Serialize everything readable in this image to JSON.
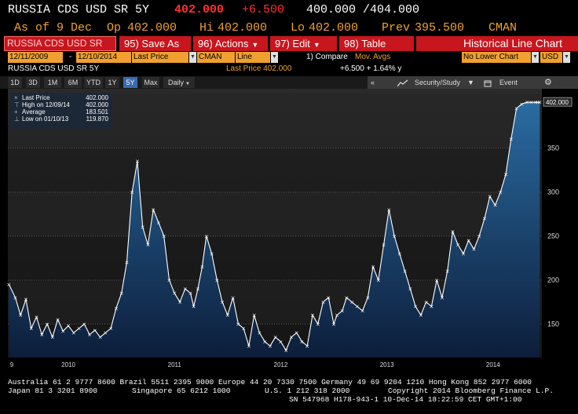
{
  "header": {
    "security": "RUSSIA CDS USD SR 5Y",
    "last": "402.000",
    "change": "+6.500",
    "bid_ask": "400.000 /404.000"
  },
  "quote": {
    "as_of": "As of 9 Dec",
    "open_label": "Op",
    "open": "402.000",
    "high_label": "Hi",
    "high": "402.000",
    "low_label": "Lo",
    "low": "402.000",
    "prev_label": "Prev",
    "prev": "395.500",
    "source": "CMAN"
  },
  "menu": {
    "security_box": "RUSSIA CDS USD SR",
    "save_num": "95)",
    "save": "Save As",
    "actions_num": "96)",
    "actions": "Actions",
    "edit_num": "97)",
    "edit": "Edit",
    "table_num": "98)",
    "table": "Table",
    "title": "Historical Line Chart"
  },
  "params": {
    "start_date": "12/11/2009",
    "sep": "-",
    "end_date": "12/10/2014",
    "field": "Last Price",
    "source": "CMAN",
    "chart_type": "Line",
    "compare": "1) Compare",
    "mov_avgs": "Mov. Avgs",
    "lower_chart": "No Lower Chart",
    "currency": "USD"
  },
  "info": {
    "name": "RUSSIA CDS USD SR 5Y",
    "last_price": "Last Price 402.000",
    "change": "+6.500 + 1.64% y"
  },
  "ranges": [
    "1D",
    "3D",
    "1M",
    "6M",
    "YTD",
    "1Y",
    "5Y",
    "Max"
  ],
  "active_range": "5Y",
  "period": "Daily",
  "toolbar": {
    "security_study": "Security/Study",
    "event": "Event"
  },
  "legend": {
    "last_price_label": "Last Price",
    "last_price": "402.000",
    "high_label": "High on 12/09/14",
    "high": "402.000",
    "average_label": "Average",
    "average": "183.501",
    "low_label": "Low on 01/10/13",
    "low": "119.870"
  },
  "last_value_label": "402.000",
  "chart_data": {
    "type": "area",
    "title": "",
    "xlabel": "",
    "ylabel": "",
    "ylim": [
      112,
      412
    ],
    "y_ticks": [
      150,
      200,
      250,
      300,
      350
    ],
    "x_ticks": [
      "9",
      "2010",
      "2011",
      "2012",
      "2013",
      "2014"
    ],
    "x_tick_years": [
      2009.95,
      2010.5,
      2011.5,
      2012.5,
      2013.5,
      2014.5
    ],
    "x": [
      2009.94,
      2010.0,
      2010.05,
      2010.1,
      2010.15,
      2010.2,
      2010.25,
      2010.3,
      2010.35,
      2010.4,
      2010.45,
      2010.5,
      2010.55,
      2010.6,
      2010.65,
      2010.7,
      2010.75,
      2010.8,
      2010.85,
      2010.9,
      2010.95,
      2011.0,
      2011.05,
      2011.1,
      2011.15,
      2011.2,
      2011.25,
      2011.3,
      2011.35,
      2011.4,
      2011.45,
      2011.5,
      2011.55,
      2011.6,
      2011.65,
      2011.68,
      2011.72,
      2011.76,
      2011.8,
      2011.85,
      2011.9,
      2011.95,
      2012.0,
      2012.05,
      2012.1,
      2012.15,
      2012.2,
      2012.25,
      2012.3,
      2012.35,
      2012.4,
      2012.45,
      2012.5,
      2012.55,
      2012.6,
      2012.65,
      2012.7,
      2012.75,
      2012.8,
      2012.85,
      2012.9,
      2012.95,
      2013.0,
      2013.03,
      2013.08,
      2013.12,
      2013.17,
      2013.22,
      2013.27,
      2013.32,
      2013.37,
      2013.42,
      2013.47,
      2013.52,
      2013.57,
      2013.62,
      2013.67,
      2013.72,
      2013.77,
      2013.82,
      2013.87,
      2013.92,
      2013.97,
      2014.02,
      2014.07,
      2014.12,
      2014.17,
      2014.22,
      2014.27,
      2014.32,
      2014.37,
      2014.42,
      2014.47,
      2014.52,
      2014.57,
      2014.62,
      2014.67,
      2014.72,
      2014.77,
      2014.82,
      2014.86,
      2014.9,
      2014.92,
      2014.94
    ],
    "values": [
      195,
      180,
      160,
      178,
      145,
      158,
      138,
      150,
      135,
      155,
      142,
      148,
      140,
      145,
      150,
      138,
      143,
      135,
      140,
      145,
      168,
      185,
      220,
      300,
      335,
      260,
      240,
      280,
      265,
      250,
      200,
      185,
      175,
      190,
      185,
      170,
      190,
      215,
      250,
      230,
      200,
      175,
      160,
      180,
      150,
      145,
      125,
      160,
      140,
      130,
      125,
      135,
      130,
      120,
      135,
      140,
      130,
      125,
      160,
      150,
      175,
      180,
      150,
      160,
      165,
      180,
      175,
      170,
      165,
      180,
      215,
      200,
      240,
      280,
      250,
      230,
      210,
      190,
      170,
      160,
      175,
      170,
      200,
      180,
      210,
      255,
      240,
      230,
      245,
      235,
      250,
      270,
      295,
      285,
      300,
      320,
      360,
      395,
      400,
      402,
      402,
      402,
      402,
      402
    ],
    "last": 402.0,
    "high": 402.0,
    "average": 183.501,
    "low": 119.87
  },
  "footer": {
    "line1": "Australia 61 2 9777 8600 Brazil 5511 2395 9000 Europe 44 20 7330 7500 Germany 49 69 9204 1210 Hong Kong 852 2977 6000",
    "line2a": "Japan 81 3 3201 8900",
    "line2b": "Singapore 65 6212 1000",
    "line2c": "U.S. 1 212 318 2000",
    "line2d": "Copyright 2014 Bloomberg Finance L.P.",
    "line3": "SN 547968 H178-943-1 10-Dec-14 18:22:59 CET  GMT+1:00"
  },
  "colors": {
    "amber": "#f0a030",
    "bloomberg_red": "#c8161e",
    "area_top": "#1e5a8c",
    "area_bottom": "#0c1e3c",
    "line": "#ffffff"
  }
}
